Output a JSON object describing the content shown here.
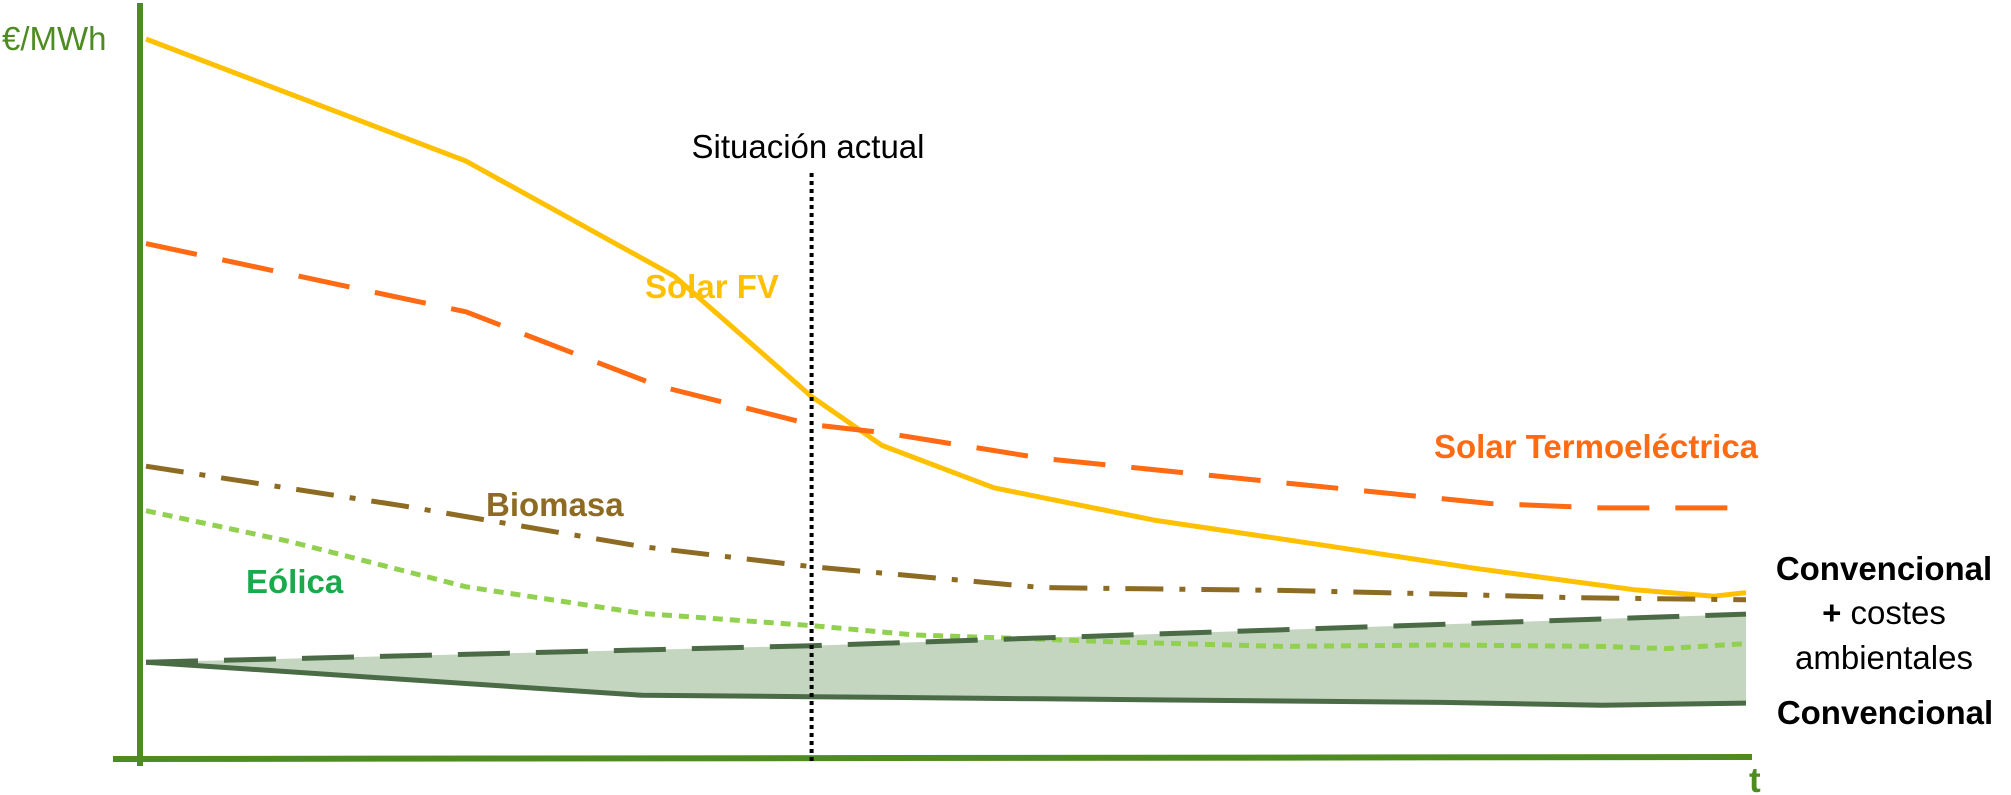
{
  "chart_data": {
    "type": "line",
    "title": "",
    "ylabel": "€/MWh",
    "xlabel": "t",
    "grid": false,
    "legend": "none",
    "x_range": [
      0,
      100
    ],
    "y_range": [
      0,
      100
    ],
    "marker": {
      "label": "Situación actual",
      "x": 41.6
    },
    "series": [
      {
        "name": "Solar FV",
        "color": "#FFC000",
        "style": "solid",
        "x": [
          0,
          20,
          33,
          41.6,
          46,
          53,
          63,
          73,
          83,
          93,
          98,
          100
        ],
        "y": [
          100,
          83,
          67,
          50.2,
          43.4,
          37.5,
          33,
          29.7,
          26.3,
          23.3,
          22.4,
          22.9
        ]
      },
      {
        "name": "Solar Termoeléctrica",
        "color": "#FF6A13",
        "style": "dash",
        "x": [
          0,
          20,
          32,
          41.6,
          46,
          56,
          71,
          84,
          91,
          100
        ],
        "y": [
          71.5,
          62,
          51.7,
          46.3,
          45.2,
          41.6,
          38.2,
          35.3,
          34.7,
          34.7
        ]
      },
      {
        "name": "Biomasa",
        "color": "#8E6B23",
        "style": "dashdot",
        "x": [
          0,
          16,
          31,
          41.6,
          56,
          71,
          81,
          89,
          100
        ],
        "y": [
          40.5,
          35,
          29.3,
          26.5,
          23.6,
          23.2,
          22.7,
          22.2,
          21.9
        ]
      },
      {
        "name": "Eólica",
        "color": "#92D050",
        "style": "dot",
        "x": [
          0,
          9,
          20,
          31,
          41.6,
          48,
          61,
          71,
          81,
          91,
          95,
          100
        ],
        "y": [
          34.3,
          30,
          23.7,
          20,
          18.3,
          17,
          16,
          15.4,
          15.6,
          15.4,
          15.1,
          15.8
        ]
      },
      {
        "name": "Convencional",
        "color": "#4A6B45",
        "style": "solid",
        "x": [
          0,
          31,
          41.6,
          56,
          81,
          91,
          100
        ],
        "y": [
          13.2,
          8.6,
          8.4,
          8.1,
          7.6,
          7.2,
          7.5
        ]
      },
      {
        "name": "Convencional + costes ambientales",
        "color": "#4A6B45",
        "style": "dash",
        "x": [
          0,
          41.6,
          100
        ],
        "y": [
          13.2,
          15.5,
          19.9
        ]
      }
    ],
    "shaded_band": {
      "between": [
        "Convencional",
        "Convencional + costes ambientales"
      ],
      "color": "#C4D6C0"
    },
    "annotations": {
      "solar_fv": "Solar FV",
      "solar_termo": "Solar Termoeléctrica",
      "biomasa": "Biomasa",
      "eolica": "Eólica",
      "conv_costes_line1": "Convencional",
      "conv_costes_plus": "+",
      "conv_costes_word": " costes",
      "conv_costes_line3": "ambientales",
      "convencional": "Convencional"
    },
    "colors": {
      "axis": "#4E8B21",
      "solar_fv_label": "#FFC000",
      "solar_termo_label": "#FF6A13",
      "biomasa_label": "#8E6B23",
      "eolica_label": "#19AB4B"
    }
  }
}
